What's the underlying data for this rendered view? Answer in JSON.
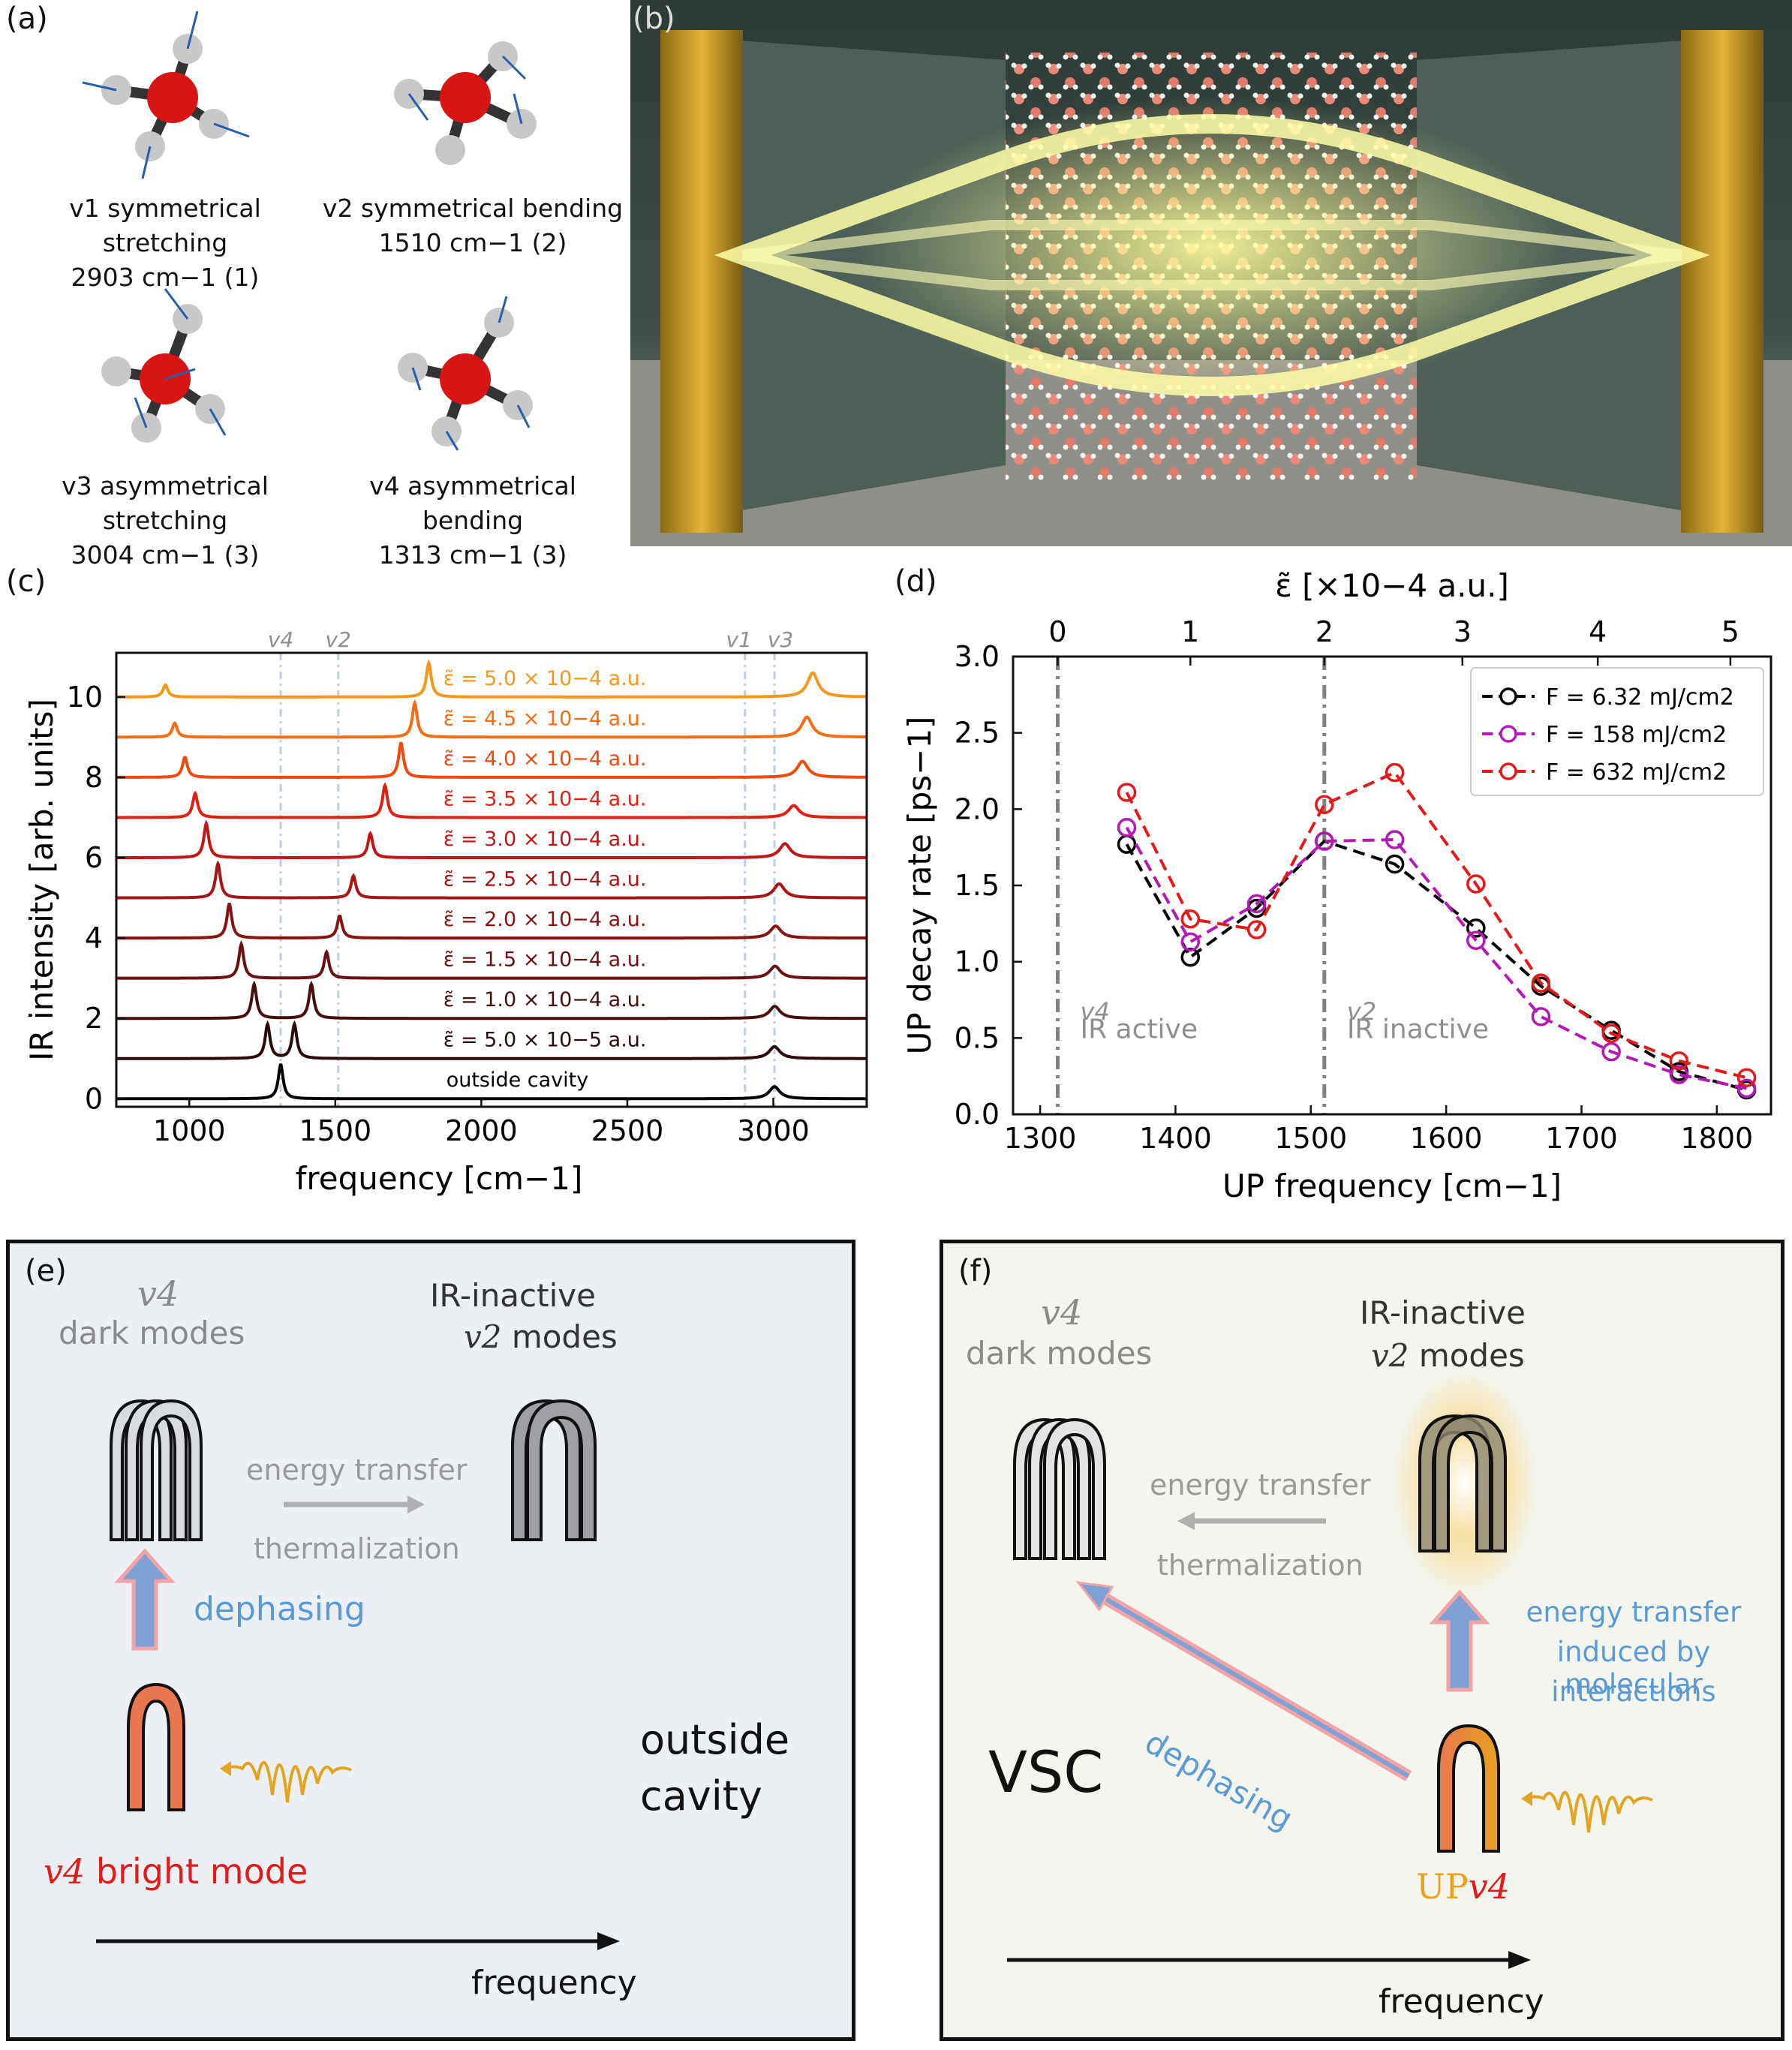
{
  "panel_labels": {
    "a": "(a)",
    "b": "(b)",
    "c": "(c)",
    "d": "(d)",
    "e": "(e)",
    "f": "(f)"
  },
  "panel_a": {
    "modes": [
      {
        "name": "v1 symmetrical stretching",
        "freq": "2903 cm−1 (1)"
      },
      {
        "name": "v2 symmetrical bending",
        "freq": "1510 cm−1 (2)"
      },
      {
        "name": "v3 asymmetrical stretching",
        "freq": "3004 cm−1 (3)"
      },
      {
        "name": "v4 asymmetrical bending",
        "freq": "1313 cm−1 (3)"
      }
    ]
  },
  "chart_data": [
    {
      "type": "line",
      "panel": "c",
      "xlabel": "frequency [cm−1]",
      "ylabel": "IR intensity [arb. units]",
      "xlim": [
        750,
        3320
      ],
      "ylim": [
        -0.2,
        11.1
      ],
      "xticks": [
        1000,
        1500,
        2000,
        2500,
        3000
      ],
      "yticks": [
        0,
        2,
        4,
        6,
        8,
        10
      ],
      "mode_markers": [
        {
          "label": "v4",
          "x": 1313
        },
        {
          "label": "v2",
          "x": 1510
        },
        {
          "label": "v1",
          "x": 2903
        },
        {
          "label": "v3",
          "x": 3004
        }
      ],
      "series": [
        {
          "name": "outside cavity",
          "offset": 0,
          "color": "#000000",
          "peaks": [
            [
              1313,
              0.85
            ],
            [
              3004,
              0.3
            ]
          ]
        },
        {
          "name": "ε̃ = 5.0 × 10−5 a.u.",
          "offset": 1,
          "color": "#2b0a0a",
          "peaks": [
            [
              1268,
              0.85
            ],
            [
              1360,
              0.85
            ],
            [
              3004,
              0.3
            ]
          ]
        },
        {
          "name": "ε̃ = 1.0 × 10−4 a.u.",
          "offset": 2,
          "color": "#4a0d0d",
          "peaks": [
            [
              1222,
              0.85
            ],
            [
              1418,
              0.85
            ],
            [
              3005,
              0.3
            ]
          ]
        },
        {
          "name": "ε̃ = 1.5 × 10−4 a.u.",
          "offset": 3,
          "color": "#6b1010",
          "peaks": [
            [
              1178,
              0.85
            ],
            [
              1470,
              0.65
            ],
            [
              3006,
              0.3
            ]
          ]
        },
        {
          "name": "ε̃ = 2.0 × 10−4 a.u.",
          "offset": 4,
          "color": "#861212",
          "peaks": [
            [
              1137,
              0.85
            ],
            [
              1515,
              0.55
            ],
            [
              3008,
              0.3
            ]
          ]
        },
        {
          "name": "ε̃ = 2.5 × 10−4 a.u.",
          "offset": 5,
          "color": "#a61414",
          "peaks": [
            [
              1098,
              0.85
            ],
            [
              1562,
              0.55
            ],
            [
              3020,
              0.35
            ]
          ]
        },
        {
          "name": "ε̃ = 3.0 × 10−4 a.u.",
          "offset": 6,
          "color": "#c11616",
          "peaks": [
            [
              1058,
              0.85
            ],
            [
              1620,
              0.6
            ],
            [
              3040,
              0.35
            ]
          ]
        },
        {
          "name": "ε̃ = 3.5 × 10−4 a.u.",
          "offset": 7,
          "color": "#e02010",
          "peaks": [
            [
              1020,
              0.6
            ],
            [
              1670,
              0.8
            ],
            [
              3070,
              0.3
            ]
          ]
        },
        {
          "name": "ε̃ = 4.0 × 10−4 a.u.",
          "offset": 8,
          "color": "#f0490d",
          "peaks": [
            [
              985,
              0.5
            ],
            [
              1725,
              0.85
            ],
            [
              3100,
              0.4
            ]
          ]
        },
        {
          "name": "ε̃ = 4.5 × 10−4 a.u.",
          "offset": 9,
          "color": "#f46d12",
          "peaks": [
            [
              950,
              0.35
            ],
            [
              1772,
              0.85
            ],
            [
              3115,
              0.5
            ]
          ]
        },
        {
          "name": "ε̃ = 5.0 × 10−4 a.u.",
          "offset": 10,
          "color": "#f5981a",
          "peaks": [
            [
              918,
              0.3
            ],
            [
              1820,
              0.85
            ],
            [
              3135,
              0.6
            ]
          ]
        }
      ]
    },
    {
      "type": "line",
      "panel": "d",
      "xlabel": "UP frequency [cm−1]",
      "ylabel": "UP decay rate [ps−1]",
      "top_xlabel": "ε̃ [×10−4 a.u.]",
      "xlim": [
        1280,
        1840
      ],
      "ylim": [
        0,
        3.0
      ],
      "xticks": [
        1300,
        1400,
        1500,
        1600,
        1700,
        1800
      ],
      "yticks": [
        0.0,
        0.5,
        1.0,
        1.5,
        2.0,
        2.5,
        3.0
      ],
      "top_ticks": [
        {
          "label": "0",
          "x": 1313
        },
        {
          "label": "1",
          "x": 1411
        },
        {
          "label": "2",
          "x": 1510
        },
        {
          "label": "3",
          "x": 1612
        },
        {
          "label": "4",
          "x": 1712
        },
        {
          "label": "5",
          "x": 1810
        }
      ],
      "legend_position": "top-right",
      "vlines": [
        {
          "x": 1313,
          "label1": "v4",
          "label2": "IR active"
        },
        {
          "x": 1510,
          "label1": "v2",
          "label2": "IR inactive"
        }
      ],
      "x": [
        1364,
        1411,
        1460,
        1510,
        1562,
        1622,
        1670,
        1722,
        1772,
        1822
      ],
      "series": [
        {
          "name": "F = 6.32 mJ/cm2",
          "color": "#000000",
          "values": [
            1.77,
            1.03,
            1.35,
            1.79,
            1.64,
            1.22,
            0.84,
            0.55,
            0.28,
            0.16
          ]
        },
        {
          "name": "F = 158 mJ/cm2",
          "color": "#b31ab3",
          "values": [
            1.88,
            1.13,
            1.38,
            1.79,
            1.8,
            1.14,
            0.64,
            0.41,
            0.26,
            0.17
          ]
        },
        {
          "name": "F = 632 mJ/cm2",
          "color": "#e31a1a",
          "values": [
            2.11,
            1.28,
            1.21,
            2.03,
            2.24,
            1.51,
            0.86,
            0.53,
            0.35,
            0.24
          ]
        }
      ]
    }
  ],
  "panel_e": {
    "dark_modes_sym": "v4",
    "dark_modes": "dark modes",
    "inactive_line1": "IR-inactive",
    "inactive_sym": "v2",
    "inactive_line2": "modes",
    "energy_transfer": "energy transfer",
    "thermalization": "thermalization",
    "dephasing": "dephasing",
    "bright_sym": "v4",
    "bright_mode": "bright mode",
    "outside_line1": "outside",
    "outside_line2": "cavity",
    "frequency": "frequency",
    "colors": {
      "bg": "#eceff4",
      "bright": "#e8774f",
      "dephasing_text": "#5b9bd5",
      "gray_text": "#9a9a9a"
    }
  },
  "panel_f": {
    "dark_modes_sym": "v4",
    "dark_modes": "dark modes",
    "inactive_line1": "IR-inactive",
    "inactive_sym": "v2",
    "inactive_line2": "modes",
    "energy_transfer": "energy transfer",
    "thermalization": "thermalization",
    "transfer_line1": "energy transfer",
    "transfer_line2": "induced by molecular",
    "transfer_line3": "interactions",
    "dephasing": "dephasing",
    "vsc": "VSC",
    "up_prefix": "UP",
    "up_sym": "v4",
    "frequency": "frequency",
    "colors": {
      "bg": "#f3f5ee",
      "up": "#e8a21f",
      "dephasing_text": "#5b9bd5",
      "gray_text": "#9a9a9a"
    }
  }
}
